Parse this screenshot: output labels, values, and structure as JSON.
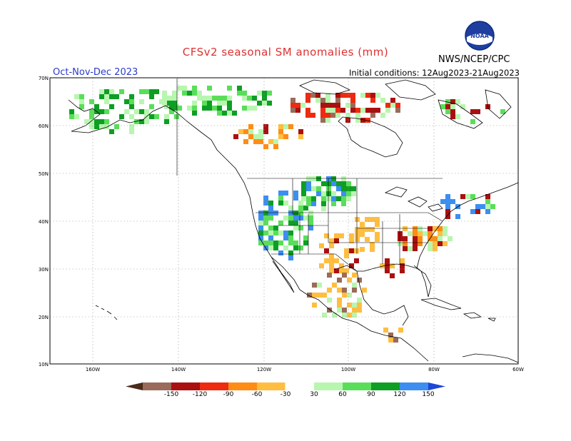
{
  "header": {
    "title": "CFSv2 seasonal SM anomalies (mm)",
    "period": "Oct-Nov-Dec 2023",
    "initial_conditions": "Initial conditions: 12Aug2023-21Aug2023",
    "agency": "NWS/NCEP/CPC",
    "logo_text": "NOAA"
  },
  "axes": {
    "lat_labels": [
      "70N",
      "60N",
      "50N",
      "40N",
      "30N",
      "20N",
      "10N"
    ],
    "lon_labels": [
      "160W",
      "140W",
      "120W",
      "100W",
      "80W",
      "60W"
    ]
  },
  "colorbar": {
    "labels": [
      "-150",
      "-120",
      "-90",
      "-60",
      "-30",
      "30",
      "60",
      "90",
      "120",
      "150"
    ],
    "colors": [
      "#4a2a18",
      "#9a6b5a",
      "#aa1010",
      "#ee2a10",
      "#ff8c14",
      "#ffbe40",
      "#ffffff",
      "#b8f6b0",
      "#5ade5a",
      "#0e9e24",
      "#3c8ef0",
      "#1e46d8"
    ]
  },
  "map_features": {
    "anomaly_palette": {
      "very_dry": "#9a6b5a",
      "dry_strong": "#aa1010",
      "dry": "#ee2a10",
      "dry_moderate": "#ff8c14",
      "dry_light": "#ffbe40",
      "wet_light": "#b8f6b0",
      "wet": "#5ade5a",
      "wet_strong": "#0e9e24",
      "very_wet": "#3c8ef0"
    }
  }
}
